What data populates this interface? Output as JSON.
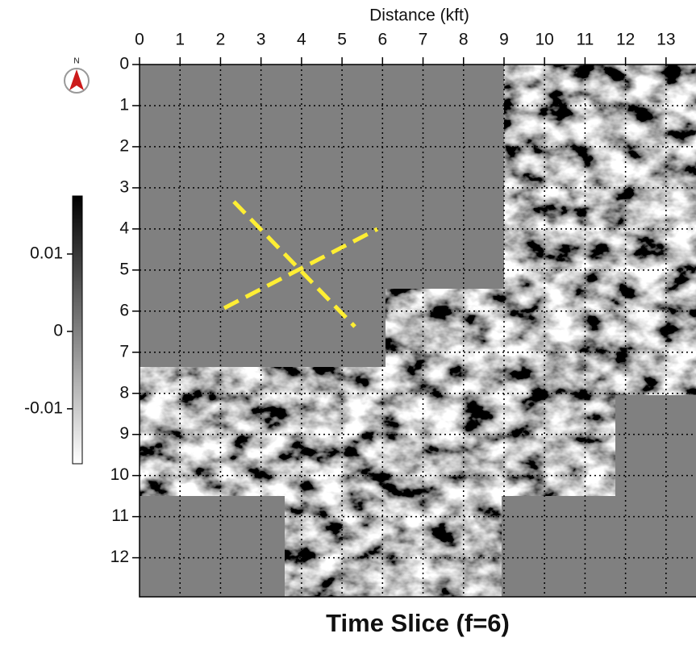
{
  "chart_data": {
    "type": "heatmap",
    "title": "Time Slice (f=6)",
    "x_label": "Distance (kft)",
    "north_label": "N",
    "xlim": [
      0,
      13.74
    ],
    "ylim": [
      0,
      12.95
    ],
    "y_inverted": true,
    "xticks": [
      0,
      1,
      2,
      3,
      4,
      5,
      6,
      7,
      8,
      9,
      10,
      11,
      12,
      13
    ],
    "yticks": [
      0,
      1,
      2,
      3,
      4,
      5,
      6,
      7,
      8,
      9,
      10,
      11,
      12
    ],
    "grid": true,
    "colormap": "gray_r",
    "clim": [
      -0.0171,
      0.0175
    ],
    "cticks": [
      0.01,
      0,
      -0.01
    ]
  }
}
